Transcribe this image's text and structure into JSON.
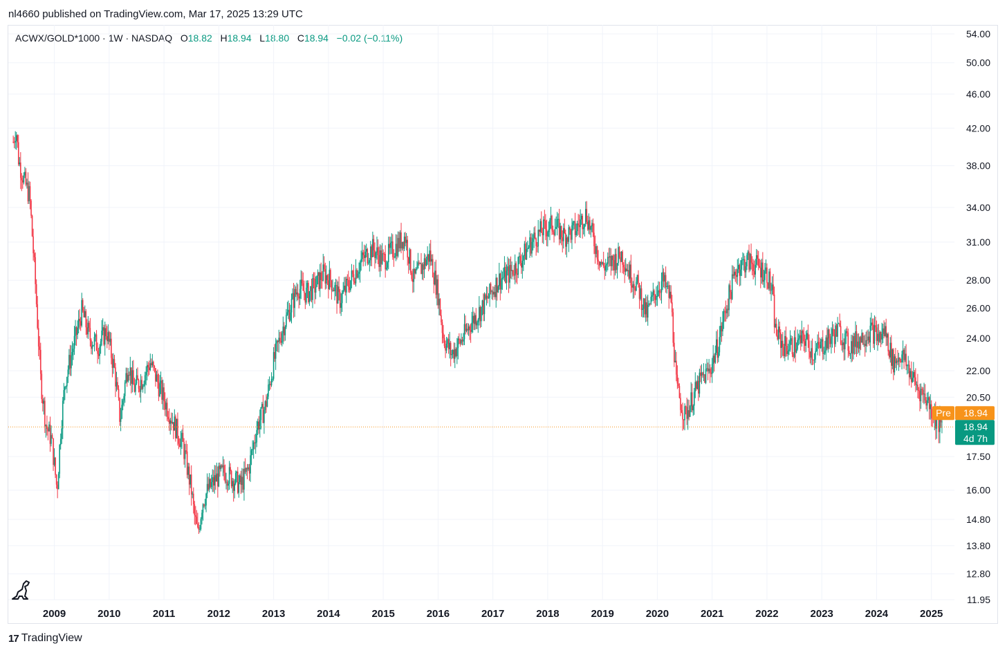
{
  "publisher_line": "nl4660 published on TradingView.com, Mar 17, 2025 13:29 UTC",
  "legend": {
    "symbol": "ACWX/GOLD*1000 · 1W · NASDAQ",
    "o_label": "O",
    "o_value": "18.82",
    "h_label": "H",
    "h_value": "18.94",
    "l_label": "L",
    "l_value": "18.80",
    "c_label": "C",
    "c_value": "18.94",
    "change": "−0.02 (−0.11%)"
  },
  "brand": {
    "logo_glyph": "17",
    "name": "TradingView"
  },
  "colors": {
    "up": "#089981",
    "down": "#f23645",
    "pre": "#f7931a",
    "grid": "#f0f3fa",
    "axis_text": "#131722"
  },
  "chart_data": {
    "type": "line",
    "subtype": "candlestick-weekly",
    "title": "ACWX/GOLD*1000 · 1W · NASDAQ",
    "scale": "log",
    "ylim": [
      11.95,
      54.0
    ],
    "y_ticks": [
      "54.00",
      "50.00",
      "46.00",
      "42.00",
      "38.00",
      "34.00",
      "31.00",
      "28.00",
      "26.00",
      "24.00",
      "22.00",
      "20.50",
      "17.50",
      "16.00",
      "14.80",
      "13.80",
      "12.80",
      "11.95"
    ],
    "x_ticks": [
      "2009",
      "2010",
      "2011",
      "2012",
      "2013",
      "2014",
      "2015",
      "2016",
      "2017",
      "2018",
      "2019",
      "2020",
      "2021",
      "2022",
      "2023",
      "2024",
      "2025"
    ],
    "xlim": [
      2008.16,
      2025.42
    ],
    "last_price": 18.94,
    "price_labels": {
      "pre_label": "Pre",
      "pre_value": "18.94",
      "last_value": "18.94",
      "countdown": "4d 7h"
    },
    "series": [
      {
        "name": "ACWX/GOLD*1000",
        "x": [
          2008.25,
          2008.3,
          2008.35,
          2008.45,
          2008.55,
          2008.65,
          2008.75,
          2008.85,
          2008.95,
          2009.05,
          2009.12,
          2009.2,
          2009.35,
          2009.5,
          2009.65,
          2009.8,
          2009.95,
          2010.1,
          2010.2,
          2010.3,
          2010.35,
          2010.45,
          2010.6,
          2010.75,
          2010.9,
          2011.05,
          2011.2,
          2011.35,
          2011.5,
          2011.55,
          2011.62,
          2011.7,
          2011.8,
          2011.95,
          2012.1,
          2012.25,
          2012.4,
          2012.55,
          2012.7,
          2012.85,
          2013.0,
          2013.15,
          2013.3,
          2013.45,
          2013.6,
          2013.75,
          2013.9,
          2014.05,
          2014.2,
          2014.4,
          2014.6,
          2014.8,
          2015.0,
          2015.2,
          2015.4,
          2015.55,
          2015.7,
          2015.85,
          2016.0,
          2016.1,
          2016.25,
          2016.45,
          2016.6,
          2016.8,
          2016.95,
          2017.1,
          2017.3,
          2017.5,
          2017.7,
          2017.9,
          2018.1,
          2018.3,
          2018.5,
          2018.7,
          2018.85,
          2019.0,
          2019.2,
          2019.35,
          2019.5,
          2019.65,
          2019.8,
          2019.95,
          2020.1,
          2020.2,
          2020.25,
          2020.35,
          2020.5,
          2020.65,
          2020.8,
          2020.95,
          2021.1,
          2021.25,
          2021.45,
          2021.65,
          2021.85,
          2022.0,
          2022.1,
          2022.15,
          2022.3,
          2022.5,
          2022.7,
          2022.85,
          2023.0,
          2023.15,
          2023.3,
          2023.5,
          2023.7,
          2023.9,
          2024.05,
          2024.15,
          2024.3,
          2024.45,
          2024.6,
          2024.75,
          2024.9,
          2025.05,
          2025.15,
          2025.2
        ],
        "values": [
          40.5,
          42.0,
          38.5,
          36.5,
          35.0,
          28.0,
          21.5,
          19.0,
          18.3,
          16.0,
          19.0,
          21.5,
          23.5,
          25.8,
          24.0,
          23.5,
          24.5,
          22.0,
          19.3,
          21.5,
          22.5,
          21.0,
          21.5,
          22.5,
          21.2,
          20.0,
          19.0,
          18.0,
          16.0,
          15.0,
          14.2,
          15.5,
          16.0,
          16.5,
          16.8,
          16.5,
          16.2,
          17.0,
          19.0,
          20.0,
          22.5,
          24.5,
          26.0,
          27.5,
          27.0,
          27.5,
          28.5,
          28.0,
          26.5,
          28.0,
          29.5,
          30.5,
          29.5,
          30.5,
          31.5,
          28.0,
          29.0,
          30.0,
          27.0,
          24.0,
          23.0,
          24.0,
          25.0,
          26.0,
          27.0,
          28.0,
          28.5,
          29.5,
          31.0,
          32.0,
          32.5,
          31.5,
          32.0,
          33.5,
          31.0,
          29.0,
          29.5,
          30.0,
          28.5,
          27.5,
          25.5,
          27.0,
          28.0,
          27.0,
          26.5,
          21.0,
          19.5,
          20.5,
          21.5,
          22.0,
          23.5,
          26.0,
          29.0,
          29.5,
          29.0,
          28.5,
          27.0,
          24.5,
          23.5,
          23.5,
          24.0,
          23.0,
          23.5,
          24.0,
          24.5,
          23.5,
          24.0,
          24.5,
          24.0,
          24.5,
          22.5,
          23.0,
          22.0,
          21.0,
          20.5,
          19.5,
          19.0,
          18.94
        ]
      }
    ]
  }
}
